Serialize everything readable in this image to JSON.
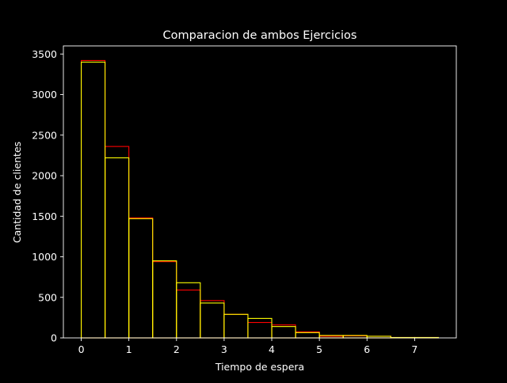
{
  "chart_data": {
    "type": "bar",
    "title": "Comparacion de ambos Ejercicios",
    "xlabel": "Tiempo de espera",
    "ylabel": "Cantidad de clientes",
    "xlim": [
      -0.375,
      7.875
    ],
    "ylim": [
      0,
      3600
    ],
    "xticks": [
      "0",
      "1",
      "2",
      "3",
      "4",
      "5",
      "6",
      "7"
    ],
    "yticks": [
      "0",
      "500",
      "1000",
      "1500",
      "2000",
      "2500",
      "3000",
      "3500"
    ],
    "bin_edges": [
      0,
      0.5,
      1,
      1.5,
      2,
      2.5,
      3,
      3.5,
      4,
      4.5,
      5,
      5.5,
      6,
      6.5,
      7,
      7.5
    ],
    "series": [
      {
        "color": "#ff0000",
        "values": [
          3420,
          2360,
          1480,
          940,
          590,
          460,
          290,
          190,
          160,
          75,
          20,
          25,
          20,
          5,
          5
        ]
      },
      {
        "color": "#ffff00",
        "values": [
          3400,
          2220,
          1470,
          950,
          680,
          430,
          290,
          240,
          140,
          65,
          30,
          30,
          20,
          5,
          5
        ]
      }
    ],
    "grid": false,
    "legend": "none",
    "background": "#000000",
    "axis_color": "#ffffff"
  }
}
